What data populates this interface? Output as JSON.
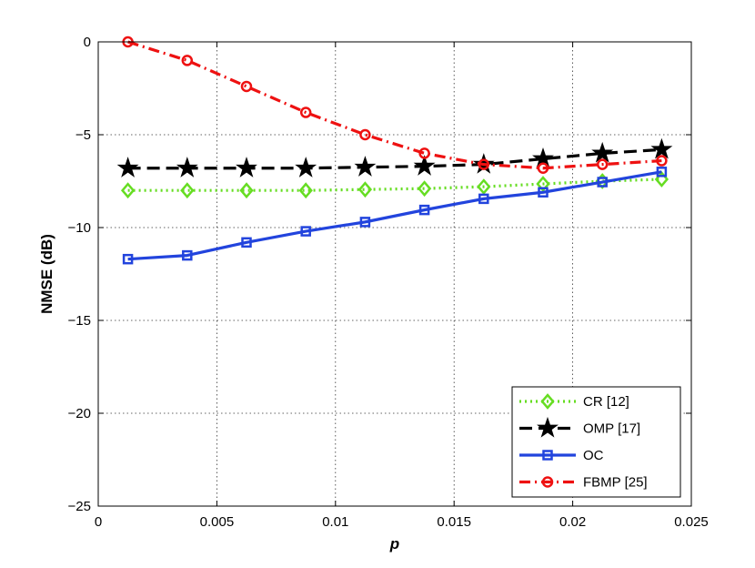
{
  "chart_data": {
    "type": "line",
    "title": "",
    "xlabel": "p",
    "ylabel": "NMSE (dB)",
    "xlim": [
      0,
      0.025
    ],
    "ylim": [
      -25,
      0
    ],
    "x_ticks": [
      0,
      0.005,
      0.01,
      0.015,
      0.02,
      0.025
    ],
    "x_tick_labels": [
      "0",
      "0.005",
      "0.01",
      "0.015",
      "0.02",
      "0.025"
    ],
    "y_ticks": [
      0,
      -5,
      -10,
      -15,
      -20,
      -25
    ],
    "y_tick_labels": [
      "0",
      "−5",
      "−10",
      "−15",
      "−20",
      "−25"
    ],
    "grid": true,
    "legend_position": "bottom-right",
    "x": [
      0.00125,
      0.00375,
      0.00625,
      0.00875,
      0.01125,
      0.01375,
      0.01625,
      0.01875,
      0.02125,
      0.02375
    ],
    "series": [
      {
        "name": "CR [12]",
        "color": "#66dd22",
        "linestyle": "dotted",
        "marker": "diamond",
        "values": [
          -8.0,
          -8.0,
          -8.0,
          -8.0,
          -7.95,
          -7.9,
          -7.8,
          -7.65,
          -7.5,
          -7.4
        ]
      },
      {
        "name": "OMP [17]",
        "color": "#000000",
        "linestyle": "dashed",
        "marker": "star",
        "values": [
          -6.8,
          -6.8,
          -6.8,
          -6.8,
          -6.75,
          -6.7,
          -6.6,
          -6.3,
          -6.0,
          -5.8
        ]
      },
      {
        "name": "OC",
        "color": "#2244dd",
        "linestyle": "solid",
        "marker": "square",
        "values": [
          -11.7,
          -11.5,
          -10.8,
          -10.2,
          -9.7,
          -9.05,
          -8.45,
          -8.1,
          -7.55,
          -7.0
        ]
      },
      {
        "name": "FBMP [25]",
        "color": "#ee1111",
        "linestyle": "dashdot",
        "marker": "circle",
        "values": [
          0.0,
          -1.0,
          -2.4,
          -3.8,
          -5.0,
          -6.0,
          -6.6,
          -6.8,
          -6.6,
          -6.4
        ]
      }
    ]
  }
}
